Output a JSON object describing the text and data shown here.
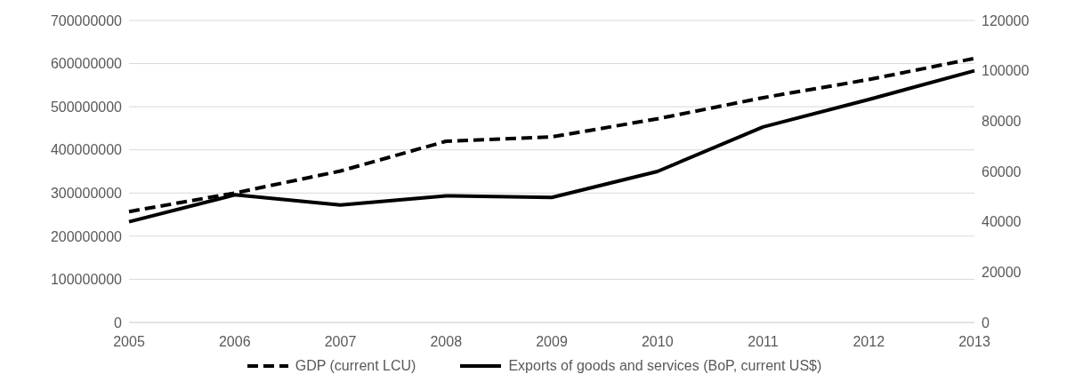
{
  "chart_data": {
    "type": "line",
    "categories": [
      "2005",
      "2006",
      "2007",
      "2008",
      "2009",
      "2010",
      "2011",
      "2012",
      "2013"
    ],
    "series": [
      {
        "name": "GDP (current LCU)",
        "color": "#000000",
        "line_style": "dashed",
        "values": [
          257000000,
          300000000,
          351000000,
          420000000,
          430000000,
          472000000,
          521000000,
          563000000,
          612000000
        ]
      },
      {
        "name": "Exports of goods and services (BoP, current US$)",
        "color": "#000000",
        "line_style": "solid",
        "axis": "y2",
        "values": [
          40000,
          50700,
          46700,
          50300,
          49700,
          60000,
          77700,
          88600,
          100000
        ]
      }
    ],
    "ylim": [
      0,
      700000000
    ],
    "yticks": [
      0,
      100000000,
      200000000,
      300000000,
      400000000,
      500000000,
      600000000,
      700000000
    ],
    "y2lim": [
      0,
      120000
    ],
    "y2ticks": [
      0,
      20000,
      40000,
      60000,
      80000,
      100000,
      120000
    ],
    "grid": "y",
    "legend": "bottom",
    "marker": "none"
  }
}
